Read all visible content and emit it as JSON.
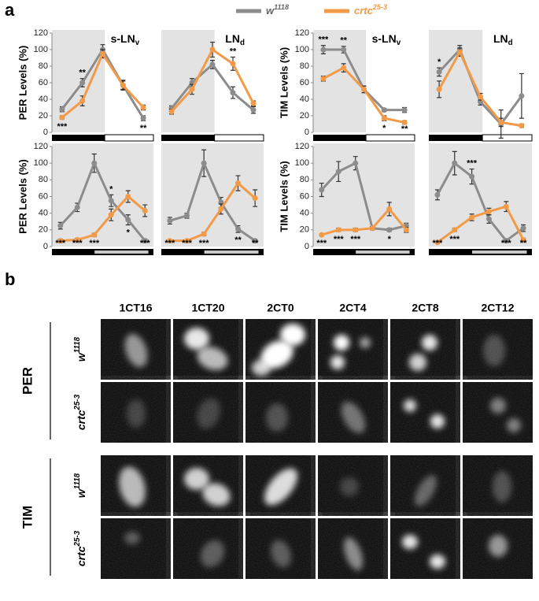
{
  "panel_a_label": "a",
  "legend": {
    "series": [
      {
        "name": "w",
        "sup": "1118",
        "color": "#8c8c8c"
      },
      {
        "name": "crtc",
        "sup": "25-3",
        "color": "#f39a48"
      }
    ]
  },
  "chart_data": [
    {
      "type": "line",
      "title": "s-LN",
      "title_sub": "v",
      "ylabel": "PER Levels (%)",
      "ylim": [
        0,
        120
      ],
      "yticks": [
        0,
        20,
        40,
        60,
        80,
        100,
        120
      ],
      "series": [
        {
          "values": [
            28,
            60,
            100,
            57,
            17
          ],
          "errors": [
            3,
            5,
            6,
            6,
            3
          ]
        },
        {
          "values": [
            18,
            38,
            95,
            57,
            30
          ],
          "errors": [
            2,
            6,
            5,
            5,
            3
          ]
        }
      ],
      "annotations": [
        {
          "x": 0,
          "text": "***"
        },
        {
          "x": 1,
          "text": "**"
        },
        {
          "x": 4,
          "text": "**"
        }
      ]
    },
    {
      "type": "line",
      "title": "LN",
      "title_sub": "d",
      "ylim": [
        0,
        120
      ],
      "series": [
        {
          "values": [
            29,
            60,
            82,
            48,
            27
          ],
          "errors": [
            3,
            5,
            5,
            7,
            4
          ]
        },
        {
          "values": [
            25,
            52,
            100,
            83,
            35
          ],
          "errors": [
            3,
            6,
            9,
            8,
            3
          ]
        }
      ],
      "annotations": [
        {
          "x": 3,
          "text": "**"
        }
      ]
    },
    {
      "type": "line",
      "title": "s-LN",
      "title_sub": "v",
      "ylabel": "TIM Levels (%)",
      "ylim": [
        0,
        120
      ],
      "yticks": [
        0,
        20,
        40,
        60,
        80,
        100,
        120
      ],
      "series": [
        {
          "values": [
            100,
            100,
            52,
            27,
            27
          ],
          "errors": [
            5,
            4,
            4,
            2,
            3
          ]
        },
        {
          "values": [
            65,
            78,
            52,
            17,
            12
          ],
          "errors": [
            3,
            5,
            4,
            3,
            2
          ]
        }
      ],
      "annotations": [
        {
          "x": 0,
          "text": "***"
        },
        {
          "x": 1,
          "text": "**"
        },
        {
          "x": 3,
          "text": "*"
        },
        {
          "x": 4,
          "text": "**"
        }
      ]
    },
    {
      "type": "line",
      "title": "LN",
      "title_sub": "d",
      "ylim": [
        0,
        120
      ],
      "series": [
        {
          "values": [
            73,
            100,
            37,
            10,
            44
          ],
          "errors": [
            5,
            5,
            4,
            17,
            27
          ]
        },
        {
          "values": [
            52,
            97,
            43,
            12,
            8
          ],
          "errors": [
            10,
            5,
            4,
            5,
            2
          ]
        }
      ],
      "annotations": [
        {
          "x": 0,
          "text": "*"
        }
      ]
    },
    {
      "type": "line",
      "ylabel": "PER Levels (%)",
      "ylim": [
        0,
        120
      ],
      "yticks": [
        0,
        20,
        40,
        60,
        80,
        100,
        120
      ],
      "series": [
        {
          "values": [
            25,
            47,
            100,
            55,
            32,
            7
          ],
          "errors": [
            4,
            5,
            11,
            7,
            6,
            2
          ]
        },
        {
          "values": [
            7,
            8,
            14,
            38,
            60,
            43
          ],
          "errors": [
            2,
            2,
            2,
            7,
            7,
            7
          ]
        }
      ],
      "annotations": [
        {
          "x": 0,
          "text": "***"
        },
        {
          "x": 1,
          "text": "***"
        },
        {
          "x": 2,
          "text": "***"
        },
        {
          "x": 3,
          "text": "*"
        },
        {
          "x": 4,
          "text": "*"
        },
        {
          "x": 5,
          "text": "***"
        }
      ]
    },
    {
      "type": "line",
      "ylim": [
        0,
        120
      ],
      "series": [
        {
          "values": [
            31,
            37,
            100,
            53,
            21,
            7
          ],
          "errors": [
            4,
            3,
            16,
            6,
            4,
            1
          ]
        },
        {
          "values": [
            7,
            7,
            15,
            45,
            76,
            58
          ],
          "errors": [
            1,
            1,
            2,
            6,
            9,
            10
          ]
        }
      ],
      "annotations": [
        {
          "x": 0,
          "text": "***"
        },
        {
          "x": 1,
          "text": "***"
        },
        {
          "x": 2,
          "text": "***"
        },
        {
          "x": 4,
          "text": "**"
        },
        {
          "x": 5,
          "text": "**"
        }
      ]
    },
    {
      "type": "line",
      "ylabel": "TIM Levels (%)",
      "ylim": [
        0,
        120
      ],
      "yticks": [
        0,
        20,
        40,
        60,
        80,
        100,
        120
      ],
      "series": [
        {
          "values": [
            68,
            90,
            100,
            22,
            20,
            25
          ],
          "errors": [
            8,
            12,
            8,
            2,
            2,
            3
          ]
        },
        {
          "values": [
            14,
            20,
            20,
            22,
            45,
            20
          ],
          "errors": [
            1,
            2,
            2,
            2,
            8,
            3
          ]
        }
      ],
      "annotations": [
        {
          "x": 0,
          "text": "***"
        },
        {
          "x": 1,
          "text": "***"
        },
        {
          "x": 2,
          "text": "***"
        },
        {
          "x": 4,
          "text": "*"
        }
      ]
    },
    {
      "type": "line",
      "ylim": [
        0,
        120
      ],
      "series": [
        {
          "values": [
            62,
            100,
            84,
            33,
            7,
            22
          ],
          "errors": [
            6,
            14,
            9,
            5,
            1,
            4
          ]
        },
        {
          "values": [
            5,
            20,
            35,
            42,
            48,
            8
          ],
          "errors": [
            1,
            2,
            4,
            4,
            6,
            2
          ]
        }
      ],
      "annotations": [
        {
          "x": 0,
          "text": "***"
        },
        {
          "x": 1,
          "text": "***"
        },
        {
          "x": 2,
          "text": "***"
        },
        {
          "x": 4,
          "text": "***"
        },
        {
          "x": 5,
          "text": "**"
        }
      ]
    }
  ],
  "panel_b": {
    "label": "b",
    "columns": [
      "1CT16",
      "1CT20",
      "2CT0",
      "2CT4",
      "2CT8",
      "2CT12"
    ],
    "groups": [
      {
        "label": "PER",
        "rows": [
          {
            "name": "w",
            "sup": "1118"
          },
          {
            "name": "crtc",
            "sup": "25-3"
          }
        ]
      },
      {
        "label": "TIM",
        "rows": [
          {
            "name": "w",
            "sup": "1118"
          },
          {
            "name": "crtc",
            "sup": "25-3"
          }
        ]
      }
    ]
  }
}
